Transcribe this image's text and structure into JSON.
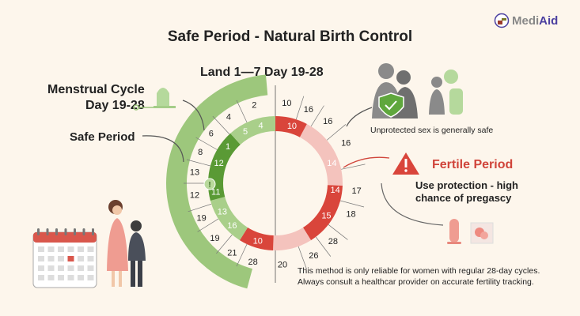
{
  "title": "Safe Period - Natural Birth Control",
  "logo": {
    "text_a": "Medi",
    "text_b": "Aid"
  },
  "cycle_header": "Land 1—7  Day 19-28",
  "menstrual_label": {
    "line1": "Menstrual Cycle",
    "line2": "Day 19-28"
  },
  "safe_label": "Safe Period",
  "unprotected_text": "Unprotected sex is generally safe",
  "fertile": {
    "title": "Fertile Period",
    "line1": "Use protection - high",
    "line2": "chance of pregascy"
  },
  "note": {
    "line1": "This method is only reliable for women with regular 28-day cycles.",
    "line2": "Always consult a healthcar provider on accurate fertility tracking."
  },
  "outer_days": [
    "10",
    "16",
    "16",
    "16",
    "17",
    "18",
    "28",
    "26",
    "20",
    "28",
    "21",
    "19",
    "19",
    "12",
    "13",
    "8",
    "6",
    "4",
    "2"
  ],
  "inner_days": [
    "10",
    "14",
    "14",
    "15",
    "10",
    "16",
    "13",
    "11",
    "12",
    "1",
    "5",
    "4"
  ],
  "colors": {
    "red": "#d9453b",
    "pink": "#f4c3bd",
    "dark_green": "#5a9a35",
    "light_green": "#a9cf8a",
    "big_arc": "#9dc77c",
    "background": "#fdf6ec"
  }
}
